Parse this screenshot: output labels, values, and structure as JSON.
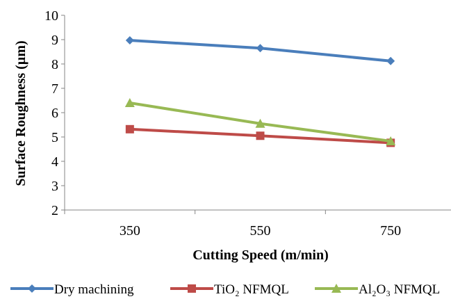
{
  "chart_data": {
    "type": "line",
    "categories": [
      "350",
      "550",
      "750"
    ],
    "series": [
      {
        "name": "Dry machining",
        "values": [
          8.97,
          8.65,
          8.12
        ],
        "color": "#4a7ebb",
        "marker": "diamond"
      },
      {
        "name": "TiO₂ NFMQL",
        "values": [
          5.32,
          5.05,
          4.76
        ],
        "color": "#be4b48",
        "marker": "square"
      },
      {
        "name": "Al₂O₃ NFMQL",
        "values": [
          6.4,
          5.55,
          4.83
        ],
        "color": "#98b954",
        "marker": "triangle"
      }
    ],
    "xlabel": "Cutting Speed (m/min)",
    "ylabel": "Surface Roughness (µm)",
    "ylim": [
      2,
      10
    ],
    "yticks": [
      2,
      3,
      4,
      5,
      6,
      7,
      8,
      9,
      10
    ],
    "grid": false,
    "legend": "bottom"
  }
}
